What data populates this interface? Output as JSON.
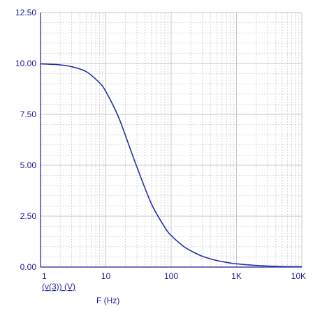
{
  "chart_data": {
    "type": "line",
    "title": "",
    "xlabel": "F (Hz)",
    "ylabel": "",
    "x_scale": "log",
    "xlim": [
      1,
      10000
    ],
    "ylim": [
      0,
      12.5
    ],
    "grid": true,
    "x_tick_labels": [
      "1",
      "10",
      "100",
      "1K",
      "10K"
    ],
    "y_tick_labels": [
      "0.00",
      "2.50",
      "5.00",
      "7.50",
      "10.00",
      "12.50"
    ],
    "series": [
      {
        "name": "(v(3)) (V)",
        "color": "#2233aa",
        "x": [
          1,
          2,
          3,
          5,
          8,
          10,
          15,
          20,
          30,
          50,
          80,
          100,
          150,
          200,
          300,
          500,
          800,
          1000,
          2000,
          5000,
          10000
        ],
        "y": [
          9.98,
          9.93,
          9.84,
          9.6,
          9.05,
          8.62,
          7.5,
          6.45,
          4.9,
          3.1,
          1.95,
          1.55,
          1.05,
          0.8,
          0.53,
          0.32,
          0.2,
          0.16,
          0.08,
          0.03,
          0.02
        ]
      }
    ]
  },
  "colors": {
    "axis": "#1b1b9a",
    "grid": "#c8c8c8",
    "series": "#2233aa"
  }
}
